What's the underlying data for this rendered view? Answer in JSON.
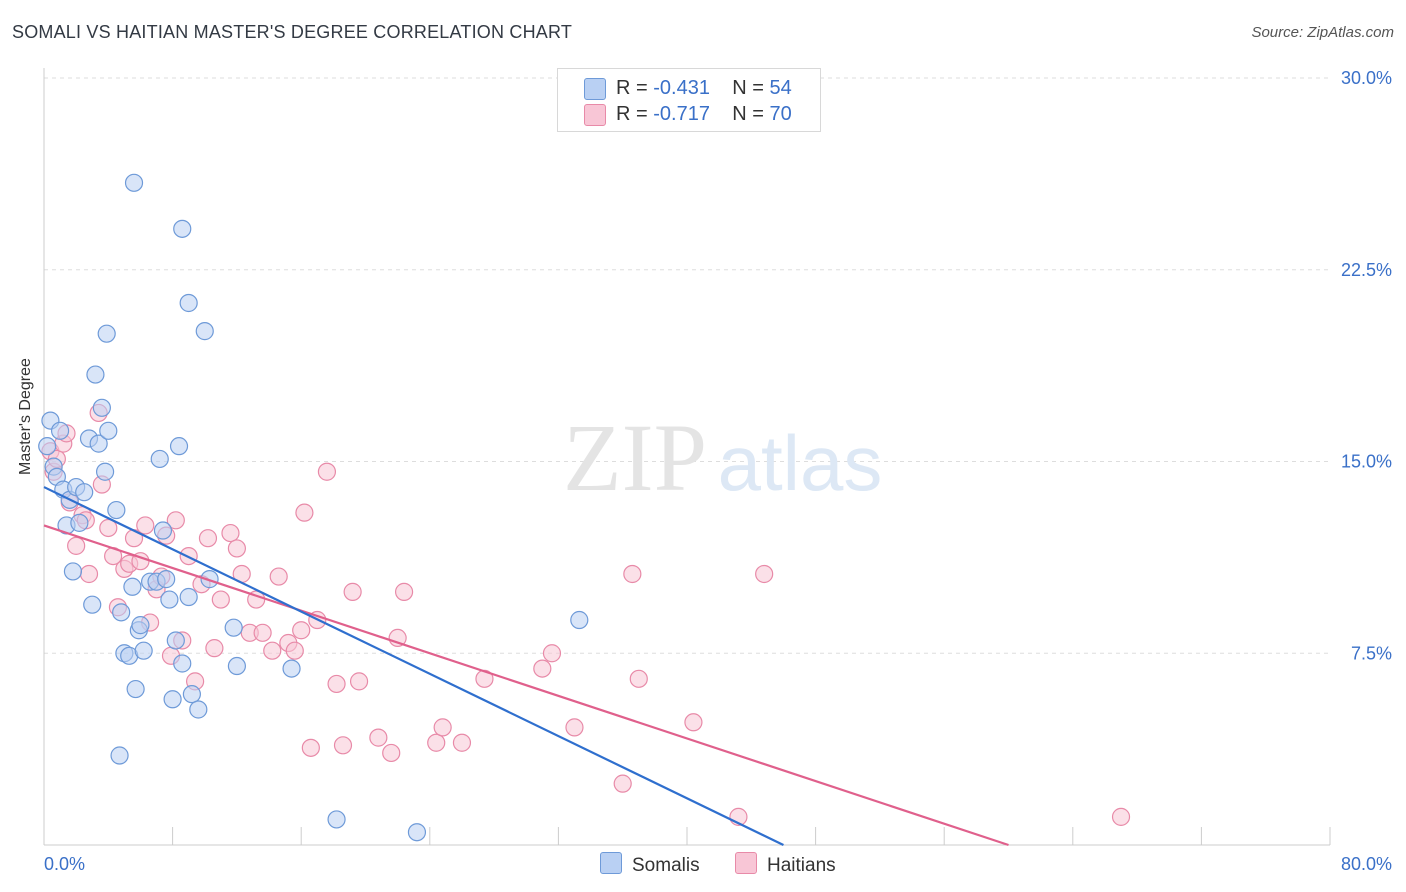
{
  "title": "SOMALI VS HAITIAN MASTER'S DEGREE CORRELATION CHART",
  "source": "Source: ZipAtlas.com",
  "watermark": {
    "zip": "ZIP",
    "atlas": "atlas"
  },
  "legend": {
    "rows": [
      {
        "r_label": "R = ",
        "r_value": "-0.431",
        "n_label": "N = ",
        "n_value": "54"
      },
      {
        "r_label": "R = ",
        "r_value": "-0.717",
        "n_label": "N = ",
        "n_value": "70"
      }
    ]
  },
  "colors": {
    "somalis_fill": "#b9d0f3",
    "somalis_stroke": "#6e9ad8",
    "somalis_line": "#2f6fce",
    "haitians_fill": "#f8c6d6",
    "haitians_stroke": "#e88aa8",
    "haitians_line": "#e0608c",
    "tick_label": "#3a70c8",
    "grid": "#dddddd"
  },
  "chart_data": {
    "type": "scatter",
    "xlabel": "",
    "ylabel": "Master's Degree",
    "xlim": [
      0,
      80
    ],
    "ylim": [
      0,
      30
    ],
    "x_tick_labels": [
      "0.0%",
      "80.0%"
    ],
    "y_ticks": [
      7.5,
      15.0,
      22.5,
      30.0
    ],
    "y_tick_labels": [
      "7.5%",
      "15.0%",
      "22.5%",
      "30.0%"
    ],
    "grid": true,
    "legend_position": "bottom",
    "series": [
      {
        "name": "Somalis",
        "trend": [
          [
            0,
            14.0
          ],
          [
            46,
            0
          ]
        ],
        "points": [
          [
            0.2,
            15.6
          ],
          [
            0.4,
            16.6
          ],
          [
            0.6,
            14.8
          ],
          [
            0.8,
            14.4
          ],
          [
            1.0,
            16.2
          ],
          [
            1.2,
            13.9
          ],
          [
            1.4,
            12.5
          ],
          [
            1.6,
            13.5
          ],
          [
            1.8,
            10.7
          ],
          [
            2.0,
            14.0
          ],
          [
            2.2,
            12.6
          ],
          [
            2.5,
            13.8
          ],
          [
            2.8,
            15.9
          ],
          [
            3.0,
            9.4
          ],
          [
            3.2,
            18.4
          ],
          [
            3.4,
            15.7
          ],
          [
            3.6,
            17.1
          ],
          [
            3.8,
            14.6
          ],
          [
            4.0,
            16.2
          ],
          [
            4.5,
            13.1
          ],
          [
            4.7,
            3.5
          ],
          [
            4.8,
            9.1
          ],
          [
            5.0,
            7.5
          ],
          [
            5.3,
            7.4
          ],
          [
            5.5,
            10.1
          ],
          [
            5.7,
            6.1
          ],
          [
            5.9,
            8.4
          ],
          [
            6.0,
            8.6
          ],
          [
            6.2,
            7.6
          ],
          [
            6.6,
            10.3
          ],
          [
            7.0,
            10.3
          ],
          [
            7.2,
            15.1
          ],
          [
            7.4,
            12.3
          ],
          [
            7.6,
            10.4
          ],
          [
            7.8,
            9.6
          ],
          [
            8.0,
            5.7
          ],
          [
            8.2,
            8.0
          ],
          [
            8.4,
            15.6
          ],
          [
            8.6,
            7.1
          ],
          [
            9.0,
            9.7
          ],
          [
            9.2,
            5.9
          ],
          [
            9.6,
            5.3
          ],
          [
            10.0,
            20.1
          ],
          [
            10.3,
            10.4
          ],
          [
            11.8,
            8.5
          ],
          [
            12.0,
            7.0
          ],
          [
            15.4,
            6.9
          ],
          [
            18.2,
            1.0
          ],
          [
            23.2,
            0.5
          ],
          [
            33.3,
            8.8
          ],
          [
            3.9,
            20.0
          ],
          [
            5.6,
            25.9
          ],
          [
            8.6,
            24.1
          ],
          [
            9.0,
            21.2
          ]
        ]
      },
      {
        "name": "Haitians",
        "trend": [
          [
            0,
            12.5
          ],
          [
            60,
            0
          ]
        ],
        "points": [
          [
            0.4,
            15.4
          ],
          [
            0.6,
            14.6
          ],
          [
            0.8,
            15.1
          ],
          [
            1.2,
            15.7
          ],
          [
            1.4,
            16.1
          ],
          [
            1.6,
            13.4
          ],
          [
            2.0,
            11.7
          ],
          [
            2.4,
            12.9
          ],
          [
            2.6,
            12.7
          ],
          [
            2.8,
            10.6
          ],
          [
            3.4,
            16.9
          ],
          [
            3.6,
            14.1
          ],
          [
            4.0,
            12.4
          ],
          [
            4.3,
            11.3
          ],
          [
            4.6,
            9.3
          ],
          [
            5.0,
            10.8
          ],
          [
            5.3,
            11.0
          ],
          [
            5.6,
            12.0
          ],
          [
            6.0,
            11.1
          ],
          [
            6.3,
            12.5
          ],
          [
            6.6,
            8.7
          ],
          [
            7.0,
            10.0
          ],
          [
            7.3,
            10.5
          ],
          [
            7.6,
            12.1
          ],
          [
            7.9,
            7.4
          ],
          [
            8.2,
            12.7
          ],
          [
            8.6,
            8.0
          ],
          [
            9.0,
            11.3
          ],
          [
            9.4,
            6.4
          ],
          [
            9.8,
            10.2
          ],
          [
            10.2,
            12.0
          ],
          [
            10.6,
            7.7
          ],
          [
            11.0,
            9.6
          ],
          [
            11.6,
            12.2
          ],
          [
            12.0,
            11.6
          ],
          [
            12.3,
            10.6
          ],
          [
            12.8,
            8.3
          ],
          [
            13.2,
            9.6
          ],
          [
            13.6,
            8.3
          ],
          [
            14.2,
            7.6
          ],
          [
            14.6,
            10.5
          ],
          [
            15.2,
            7.9
          ],
          [
            15.6,
            7.6
          ],
          [
            16.0,
            8.4
          ],
          [
            16.2,
            13.0
          ],
          [
            16.6,
            3.8
          ],
          [
            17.0,
            8.8
          ],
          [
            17.6,
            14.6
          ],
          [
            18.2,
            6.3
          ],
          [
            18.6,
            3.9
          ],
          [
            19.2,
            9.9
          ],
          [
            19.6,
            6.4
          ],
          [
            20.8,
            4.2
          ],
          [
            21.6,
            3.6
          ],
          [
            22.0,
            8.1
          ],
          [
            22.4,
            9.9
          ],
          [
            24.4,
            4.0
          ],
          [
            24.8,
            4.6
          ],
          [
            26.0,
            4.0
          ],
          [
            27.4,
            6.5
          ],
          [
            31.0,
            6.9
          ],
          [
            31.6,
            7.5
          ],
          [
            33.0,
            4.6
          ],
          [
            36.0,
            2.4
          ],
          [
            36.6,
            10.6
          ],
          [
            37.0,
            6.5
          ],
          [
            40.4,
            4.8
          ],
          [
            43.2,
            1.1
          ],
          [
            44.8,
            10.6
          ],
          [
            67.0,
            1.1
          ]
        ]
      }
    ]
  }
}
